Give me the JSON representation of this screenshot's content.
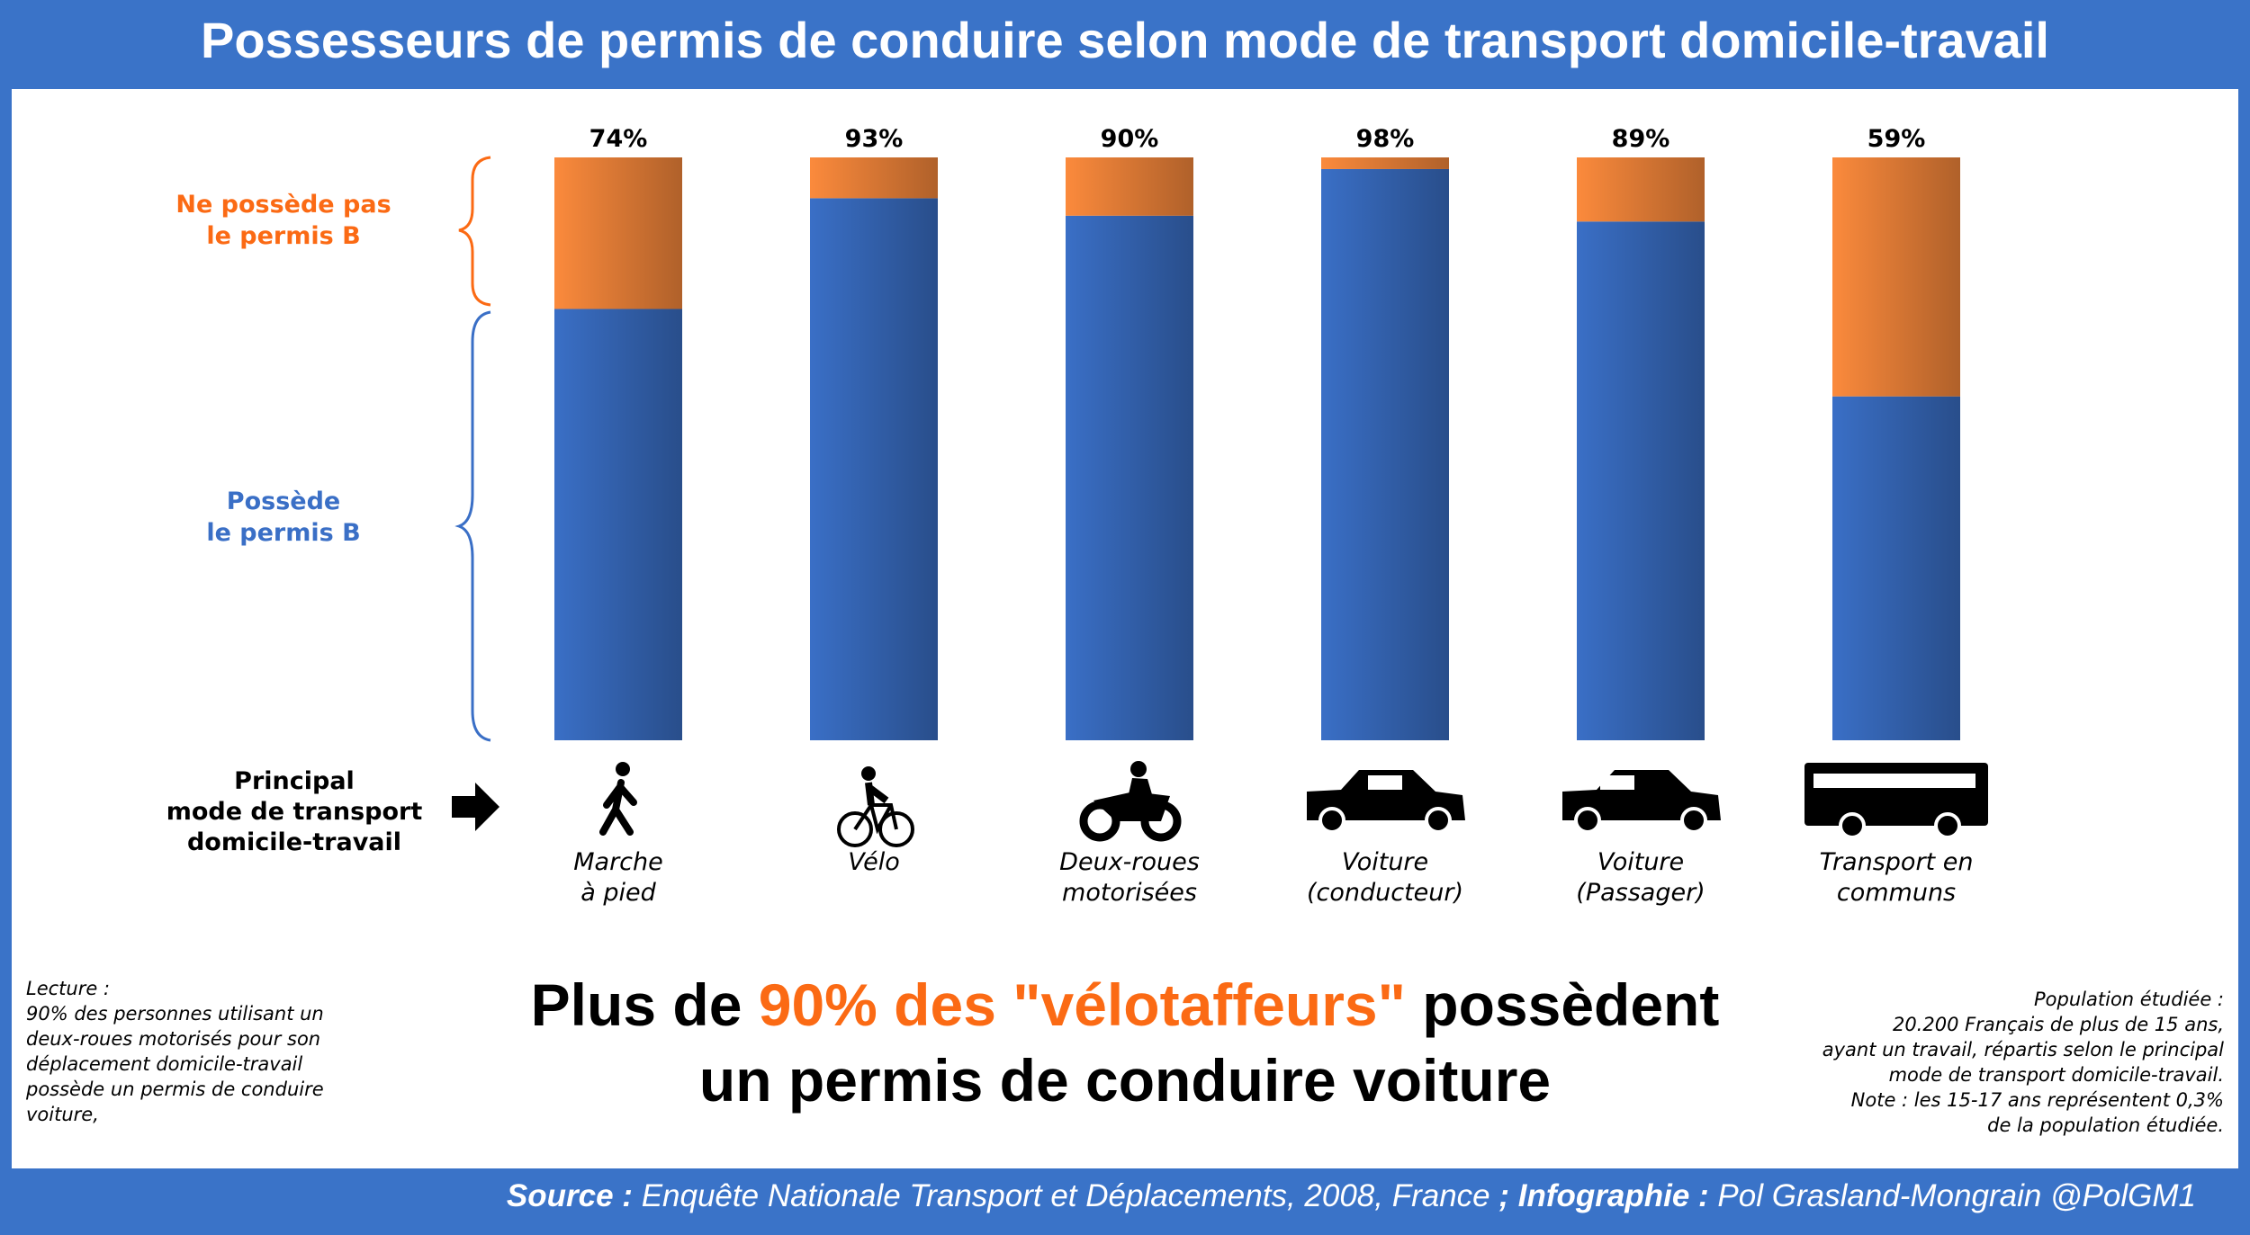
{
  "title": "Possesseurs de permis de conduire selon mode de transport domicile-travail",
  "chart_data": {
    "type": "stacked_bar",
    "categories": [
      "Marche\nà pied",
      "Vélo",
      "Deux-roues\nmotorisées",
      "Voiture\n(conducteur)",
      "Voiture\n(Passager)",
      "Transport en\ncommuns"
    ],
    "x_label": "Principal\nmode de transport\ndomicile-travail",
    "series": [
      {
        "name": "Possède\nle permis B",
        "color": "#3a6fc6",
        "values": [
          74,
          93,
          90,
          98,
          89,
          59
        ],
        "value_labels": [
          "74%",
          "93%",
          "90%",
          "98%",
          "89%",
          "59%"
        ]
      },
      {
        "name": "Ne possède pas\nle permis B",
        "color": "#fb8a3c",
        "values": [
          26,
          7,
          10,
          2,
          11,
          41
        ]
      }
    ],
    "ylim": [
      0,
      100
    ]
  },
  "headline": [
    "Plus de ",
    "90% des \"vélotaffeurs\"",
    " possèdent",
    "un permis de conduire voiture"
  ],
  "lecture": "Lecture :\n90% des personnes utilisant un\ndeux-roues motorisés pour son\ndéplacement domicile-travail\npossède un permis de conduire\nvoiture,",
  "population": "Population étudiée :\n20.200 Français de plus de 15 ans,\nayant un travail, répartis selon le principal\nmode de transport domicile-travail.\nNote : les 15-17 ans représentent 0,3%\nde la population étudiée.",
  "source": [
    "Source :",
    " Enquête Nationale Transport et Déplacements, 2008, France ",
    "; Infographie :",
    " Pol Grasland-Mongrain @PolGM1"
  ]
}
